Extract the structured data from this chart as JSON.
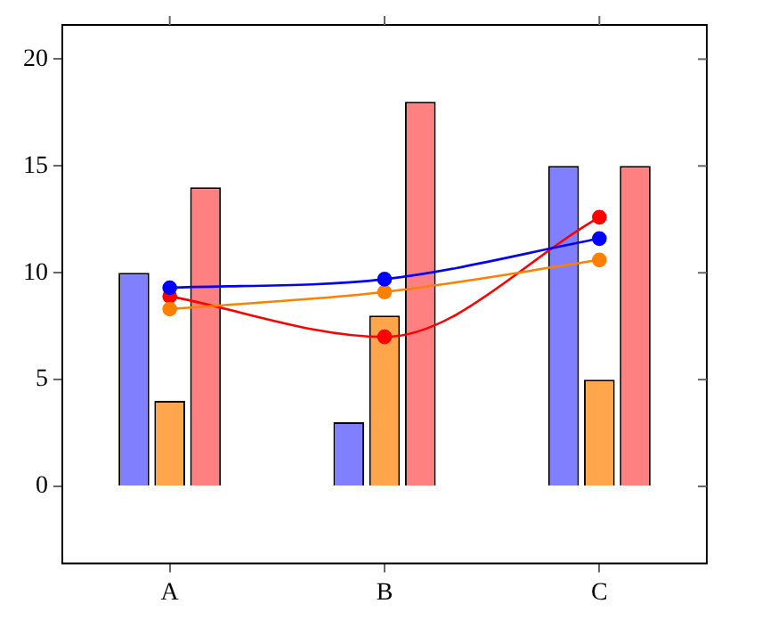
{
  "chart_data": {
    "type": "bar",
    "categories": [
      "A",
      "B",
      "C"
    ],
    "series": [
      {
        "color": "#8080ff",
        "values": [
          10,
          3,
          15
        ]
      },
      {
        "color": "#ffa64d",
        "values": [
          4,
          8,
          5
        ]
      },
      {
        "color": "#ff8080",
        "values": [
          14,
          18,
          15
        ]
      },
      {
        "type": "line",
        "color": "#0000ff",
        "values": [
          9.3,
          9.7,
          11.6
        ]
      },
      {
        "type": "line",
        "color": "#ff8000",
        "values": [
          8.3,
          9.1,
          10.6
        ]
      },
      {
        "type": "line",
        "color": "#ff0000",
        "values": [
          8.9,
          7.0,
          12.6
        ]
      }
    ],
    "ylim": [
      -3.6,
      21.6
    ],
    "yticks": [
      0,
      5,
      10,
      15,
      20
    ],
    "grid": false,
    "legend": false,
    "marker": "circle",
    "line_style": "solid"
  }
}
